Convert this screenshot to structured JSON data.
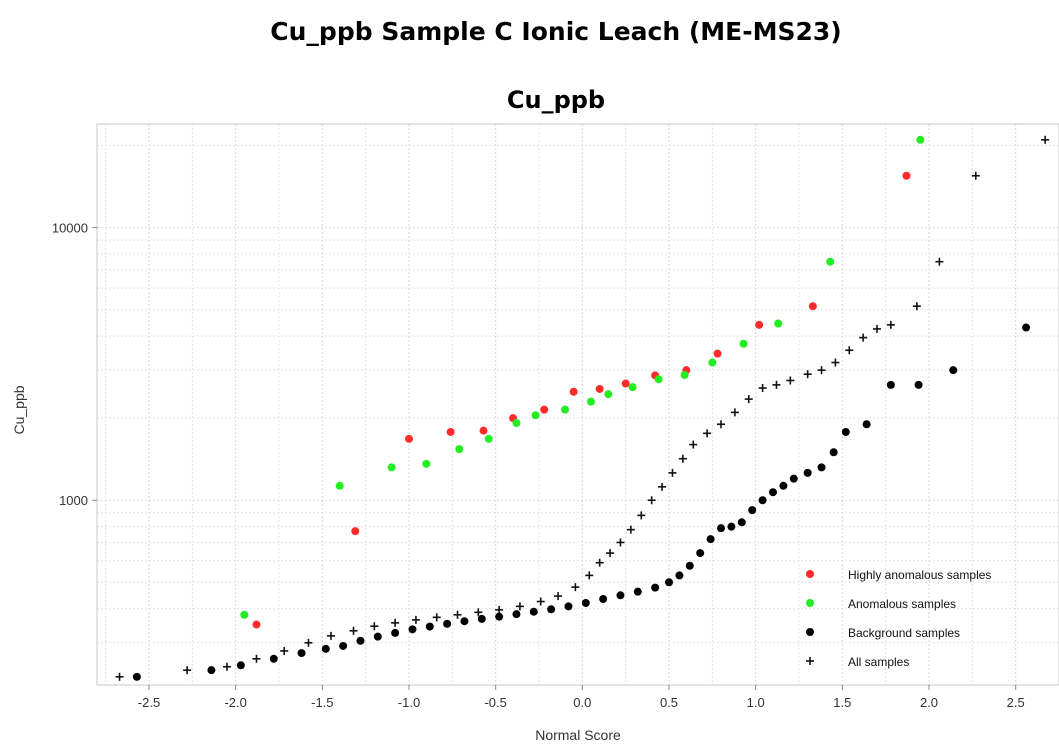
{
  "page": {
    "heading": "Cu_ppb Sample C Ionic Leach (ME-MS23)"
  },
  "chart_data": {
    "type": "scatter",
    "title": "Cu_ppb",
    "xlabel": "Normal  Score",
    "ylabel": "Cu_ppb",
    "xlim": [
      -2.8,
      2.75
    ],
    "ylim": [
      210,
      24000
    ],
    "yscale": "log",
    "grid": true,
    "legend_position": "bottom-right",
    "x_ticks": [
      {
        "v": -2.5,
        "label": "-2.5"
      },
      {
        "v": -2.0,
        "label": "-2.0"
      },
      {
        "v": -1.5,
        "label": "-1.5"
      },
      {
        "v": -1.0,
        "label": "-1.0"
      },
      {
        "v": -0.5,
        "label": "-0.5"
      },
      {
        "v": 0.0,
        "label": "0.0"
      },
      {
        "v": 0.5,
        "label": "0.5"
      },
      {
        "v": 1.0,
        "label": "1.0"
      },
      {
        "v": 1.5,
        "label": "1.5"
      },
      {
        "v": 2.0,
        "label": "2.0"
      },
      {
        "v": 2.5,
        "label": "2.5"
      }
    ],
    "y_ticks": [
      {
        "v": 1000,
        "label": "1000"
      },
      {
        "v": 10000,
        "label": "10000"
      }
    ],
    "series": [
      {
        "name": "Highly anomalous samples",
        "color": "#ff2a2a",
        "marker": "circle",
        "points": [
          [
            -1.88,
            350
          ],
          [
            -1.31,
            770
          ],
          [
            -1.0,
            1680
          ],
          [
            -0.76,
            1780
          ],
          [
            -0.57,
            1800
          ],
          [
            -0.4,
            2000
          ],
          [
            -0.22,
            2150
          ],
          [
            -0.05,
            2500
          ],
          [
            0.1,
            2560
          ],
          [
            0.25,
            2680
          ],
          [
            0.42,
            2870
          ],
          [
            0.6,
            3000
          ],
          [
            0.78,
            3450
          ],
          [
            1.02,
            4400
          ],
          [
            1.33,
            5150
          ],
          [
            1.87,
            15500
          ]
        ]
      },
      {
        "name": "Anomalous samples",
        "color": "#22ee22",
        "marker": "circle",
        "points": [
          [
            -1.95,
            380
          ],
          [
            -1.4,
            1130
          ],
          [
            -1.1,
            1320
          ],
          [
            -0.9,
            1360
          ],
          [
            -0.71,
            1540
          ],
          [
            -0.54,
            1680
          ],
          [
            -0.38,
            1920
          ],
          [
            -0.27,
            2050
          ],
          [
            -0.1,
            2150
          ],
          [
            0.05,
            2300
          ],
          [
            0.15,
            2450
          ],
          [
            0.29,
            2600
          ],
          [
            0.44,
            2780
          ],
          [
            0.59,
            2880
          ],
          [
            0.75,
            3200
          ],
          [
            0.93,
            3750
          ],
          [
            1.13,
            4450
          ],
          [
            1.43,
            7500
          ],
          [
            1.95,
            21000
          ]
        ]
      },
      {
        "name": "Background samples",
        "color": "#000000",
        "marker": "circle",
        "points": [
          [
            -2.57,
            225
          ],
          [
            -2.14,
            238
          ],
          [
            -1.97,
            248
          ],
          [
            -1.78,
            262
          ],
          [
            -1.62,
            275
          ],
          [
            -1.48,
            285
          ],
          [
            -1.38,
            292
          ],
          [
            -1.28,
            305
          ],
          [
            -1.18,
            316
          ],
          [
            -1.08,
            326
          ],
          [
            -0.98,
            336
          ],
          [
            -0.88,
            344
          ],
          [
            -0.78,
            352
          ],
          [
            -0.68,
            360
          ],
          [
            -0.58,
            367
          ],
          [
            -0.48,
            374
          ],
          [
            -0.38,
            382
          ],
          [
            -0.28,
            390
          ],
          [
            -0.18,
            398
          ],
          [
            -0.08,
            408
          ],
          [
            0.02,
            420
          ],
          [
            0.12,
            434
          ],
          [
            0.22,
            448
          ],
          [
            0.32,
            462
          ],
          [
            0.42,
            478
          ],
          [
            0.5,
            500
          ],
          [
            0.56,
            530
          ],
          [
            0.62,
            575
          ],
          [
            0.68,
            640
          ],
          [
            0.74,
            720
          ],
          [
            0.8,
            790
          ],
          [
            0.86,
            800
          ],
          [
            0.92,
            830
          ],
          [
            0.98,
            920
          ],
          [
            1.04,
            1000
          ],
          [
            1.1,
            1070
          ],
          [
            1.16,
            1130
          ],
          [
            1.22,
            1200
          ],
          [
            1.3,
            1260
          ],
          [
            1.38,
            1320
          ],
          [
            1.45,
            1500
          ],
          [
            1.52,
            1780
          ],
          [
            1.64,
            1900
          ],
          [
            1.78,
            2650
          ],
          [
            1.94,
            2650
          ],
          [
            2.14,
            3000
          ],
          [
            2.56,
            4300
          ]
        ]
      },
      {
        "name": "All samples",
        "color": "#111111",
        "marker": "plus",
        "points": [
          [
            -2.67,
            225
          ],
          [
            -2.28,
            238
          ],
          [
            -2.05,
            245
          ],
          [
            -1.88,
            262
          ],
          [
            -1.72,
            280
          ],
          [
            -1.58,
            300
          ],
          [
            -1.45,
            318
          ],
          [
            -1.32,
            332
          ],
          [
            -1.2,
            345
          ],
          [
            -1.08,
            355
          ],
          [
            -0.96,
            364
          ],
          [
            -0.84,
            372
          ],
          [
            -0.72,
            380
          ],
          [
            -0.6,
            388
          ],
          [
            -0.48,
            396
          ],
          [
            -0.36,
            408
          ],
          [
            -0.24,
            425
          ],
          [
            -0.14,
            445
          ],
          [
            -0.04,
            480
          ],
          [
            0.04,
            530
          ],
          [
            0.1,
            590
          ],
          [
            0.16,
            640
          ],
          [
            0.22,
            700
          ],
          [
            0.28,
            780
          ],
          [
            0.34,
            880
          ],
          [
            0.4,
            1000
          ],
          [
            0.46,
            1120
          ],
          [
            0.52,
            1260
          ],
          [
            0.58,
            1420
          ],
          [
            0.64,
            1600
          ],
          [
            0.72,
            1760
          ],
          [
            0.8,
            1900
          ],
          [
            0.88,
            2100
          ],
          [
            0.96,
            2350
          ],
          [
            1.04,
            2580
          ],
          [
            1.12,
            2650
          ],
          [
            1.2,
            2750
          ],
          [
            1.3,
            2900
          ],
          [
            1.38,
            3000
          ],
          [
            1.46,
            3200
          ],
          [
            1.54,
            3550
          ],
          [
            1.62,
            3950
          ],
          [
            1.7,
            4250
          ],
          [
            1.78,
            4400
          ],
          [
            1.93,
            5150
          ],
          [
            2.06,
            7500
          ],
          [
            2.27,
            15500
          ],
          [
            2.67,
            21000
          ]
        ]
      }
    ]
  }
}
